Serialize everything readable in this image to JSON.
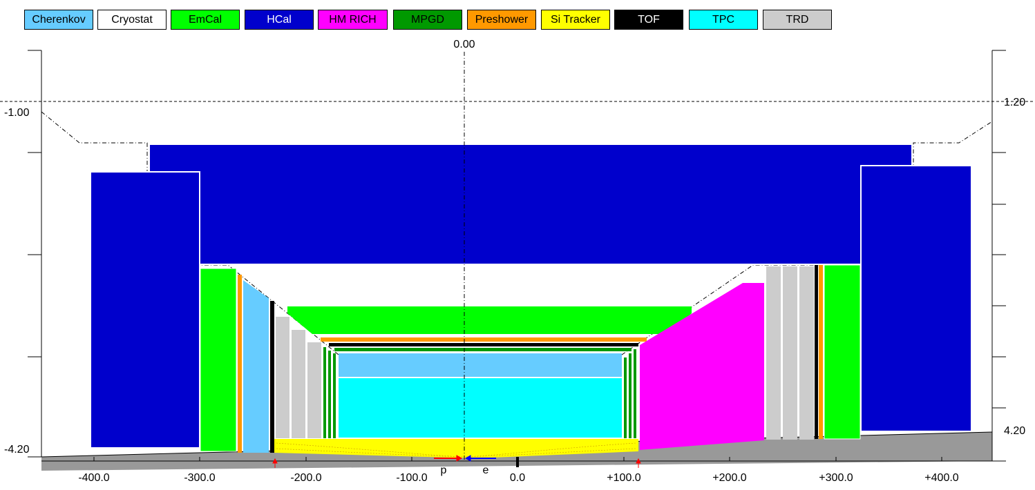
{
  "legend": [
    {
      "label": "Cherenkov",
      "color": "#66ccff",
      "text_color": "#000000"
    },
    {
      "label": "Cryostat",
      "color": "#ffffff",
      "text_color": "#000000"
    },
    {
      "label": "EmCal",
      "color": "#00ff00",
      "text_color": "#000000"
    },
    {
      "label": "HCal",
      "color": "#0000cc",
      "text_color": "#ffffff"
    },
    {
      "label": "HM RICH",
      "color": "#ff00ff",
      "text_color": "#000000"
    },
    {
      "label": "MPGD",
      "color": "#009900",
      "text_color": "#000000"
    },
    {
      "label": "Preshower",
      "color": "#ff9900",
      "text_color": "#000000"
    },
    {
      "label": "Si Tracker",
      "color": "#ffff00",
      "text_color": "#000000"
    },
    {
      "label": "TOF",
      "color": "#000000",
      "text_color": "#ffffff"
    },
    {
      "label": "TPC",
      "color": "#00ffff",
      "text_color": "#000000"
    },
    {
      "label": "TRD",
      "color": "#cccccc",
      "text_color": "#000000"
    }
  ],
  "axis": {
    "top_center_label": "0.00",
    "left_top_label": "-1.00",
    "left_bottom_label": "-4.20",
    "right_top_label": "1.20",
    "right_bottom_label": "4.20",
    "x_ticks": [
      "-400.0",
      "-300.0",
      "-200.0",
      "-100.0",
      "0.0",
      "+100.0",
      "+200.0",
      "+300.0",
      "+400.0"
    ]
  },
  "beams": {
    "proton_label": "p",
    "electron_label": "e",
    "proton_color": "#ff0000",
    "electron_color": "#0000ff"
  }
}
